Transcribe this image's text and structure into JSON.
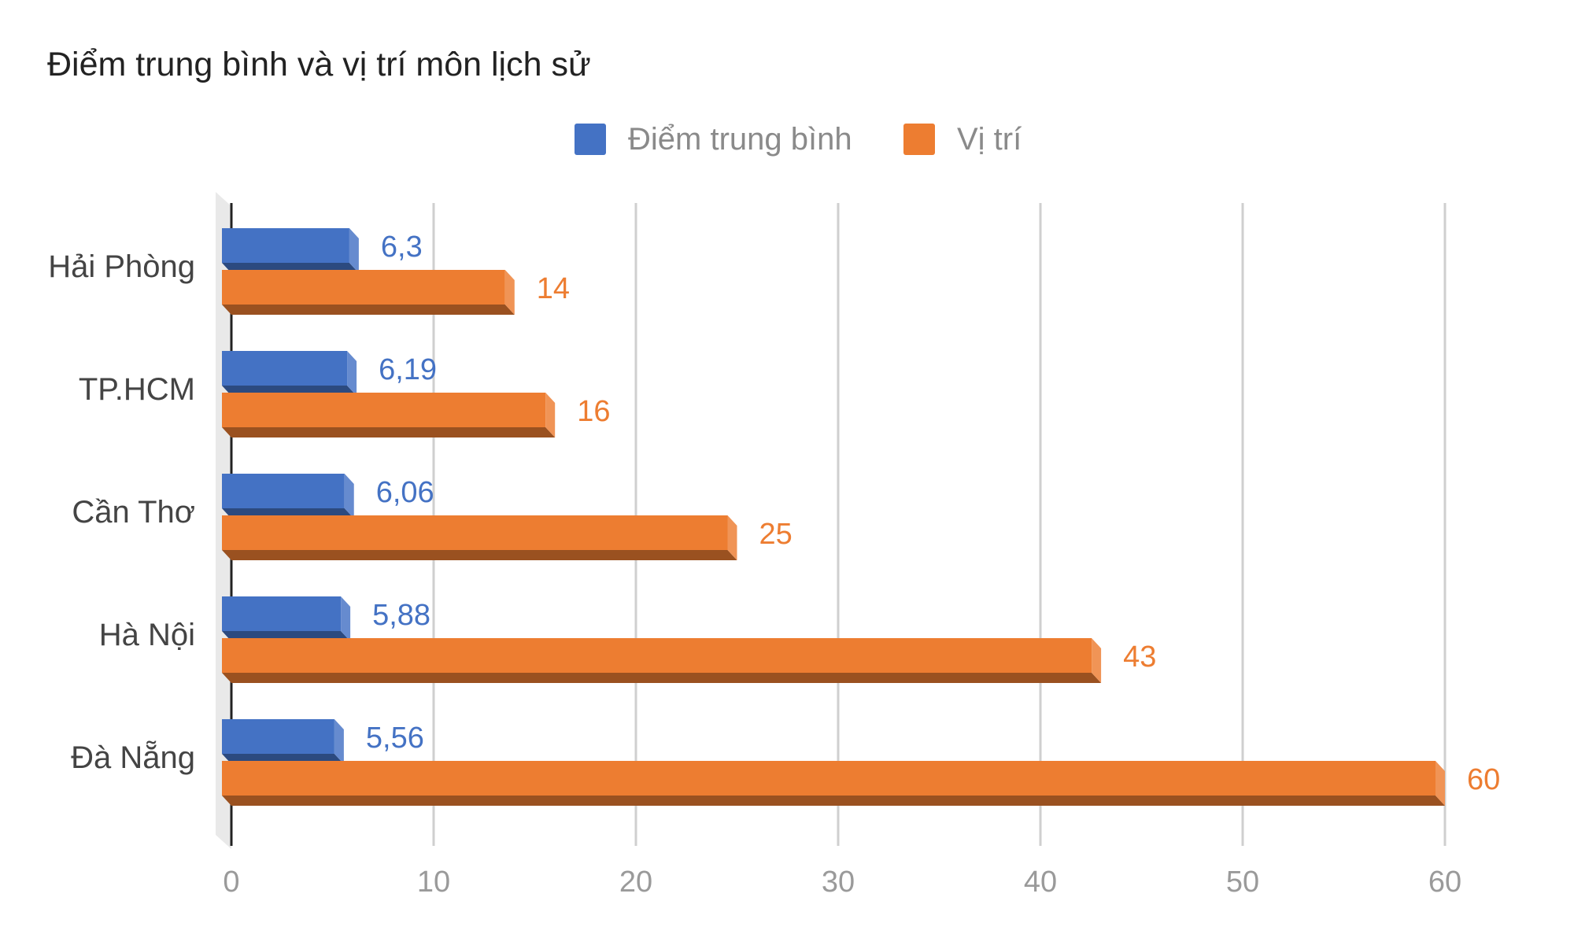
{
  "chart_data": {
    "type": "bar",
    "orientation": "horizontal",
    "style": "3d",
    "title": "Điểm trung bình và vị trí môn lịch sử",
    "categories": [
      "Hải Phòng",
      "TP.HCM",
      "Cần Thơ",
      "Hà Nội",
      "Đà Nẵng"
    ],
    "series": [
      {
        "name": "Điểm trung bình",
        "color": "#4472c4",
        "values": [
          6.3,
          6.19,
          6.06,
          5.88,
          5.56
        ],
        "labels": [
          "6,3",
          "6,19",
          "6,06",
          "5,88",
          "5,56"
        ]
      },
      {
        "name": "Vị trí",
        "color": "#ed7d31",
        "values": [
          14,
          16,
          25,
          43,
          60
        ],
        "labels": [
          "14",
          "16",
          "25",
          "43",
          "60"
        ]
      }
    ],
    "xlim": [
      0,
      60
    ],
    "xticks": [
      "0",
      "10",
      "20",
      "30",
      "40",
      "50",
      "60"
    ],
    "grid": true,
    "legend_position": "top"
  }
}
